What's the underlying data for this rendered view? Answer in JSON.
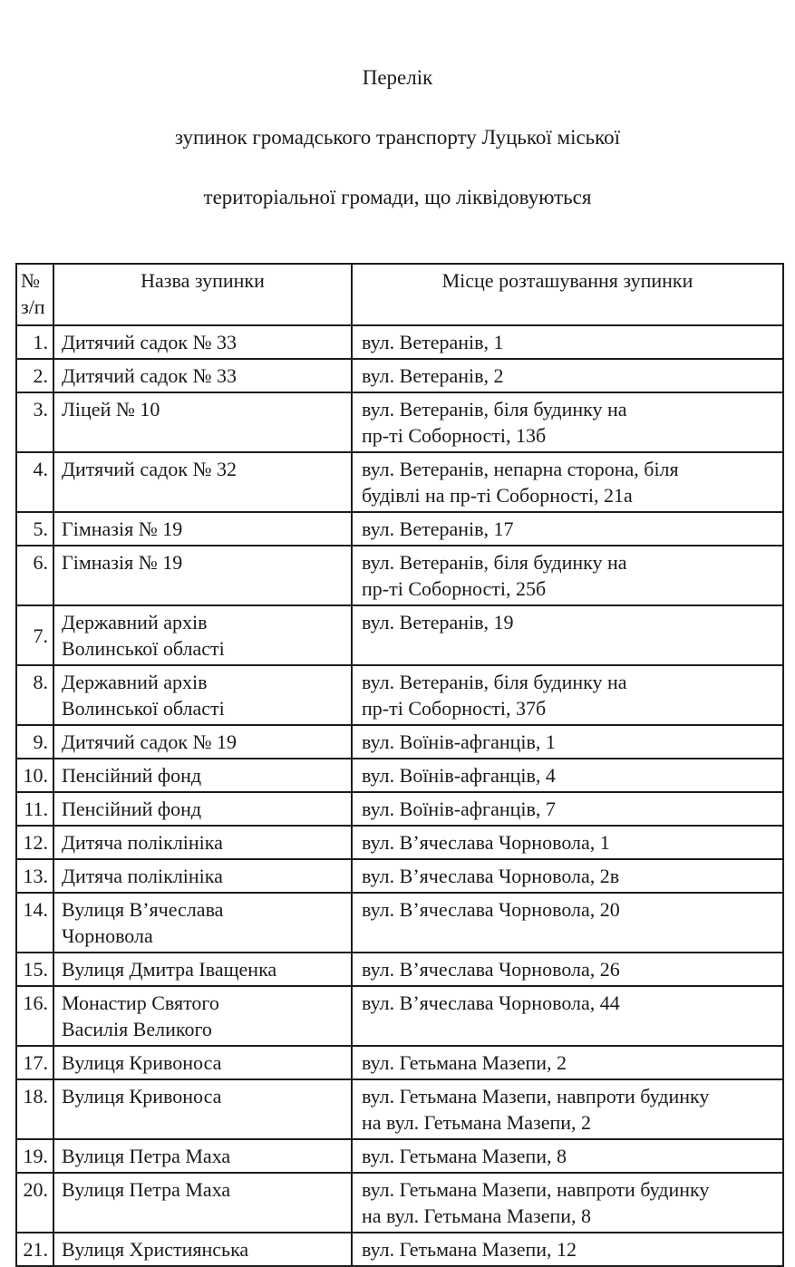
{
  "document": {
    "title_lines": [
      "Перелік",
      "зупинок громадського транспорту Луцької міської",
      "територіальної громади, що ліквідовуються"
    ]
  },
  "table": {
    "headers": {
      "num": "№\nз/п",
      "name": "Назва зупинки",
      "location": "Місце розташування зупинки"
    },
    "rows": [
      {
        "num": "1.",
        "name": "Дитячий садок № 33",
        "location": "вул. Ветеранів, 1"
      },
      {
        "num": "2.",
        "name": "Дитячий садок № 33",
        "location": "вул. Ветеранів, 2"
      },
      {
        "num": "3.",
        "name": "Ліцей № 10",
        "location": "вул. Ветеранів, біля будинку на\nпр-ті Соборності, 13б"
      },
      {
        "num": "4.",
        "name": "Дитячий садок № 32",
        "location": "вул. Ветеранів, непарна сторона, біля\nбудівлі на пр-ті Соборності, 21а"
      },
      {
        "num": "5.",
        "name": "Гімназія № 19",
        "location": "вул. Ветеранів, 17"
      },
      {
        "num": "6.",
        "name": "Гімназія № 19",
        "location": "вул. Ветеранів, біля будинку на\nпр-ті Соборності, 25б"
      },
      {
        "num": "7.",
        "name": "Державний архів\nВолинської області",
        "location": "вул. Ветеранів, 19",
        "num_valign": "middle"
      },
      {
        "num": "8.",
        "name": "Державний архів\nВолинської області",
        "location": "вул. Ветеранів, біля будинку на\nпр-ті Соборності, 37б"
      },
      {
        "num": "9.",
        "name": "Дитячий садок № 19",
        "location": "вул. Воїнів-афганців, 1"
      },
      {
        "num": "10.",
        "name": "Пенсійний фонд",
        "location": "вул. Воїнів-афганців, 4"
      },
      {
        "num": "11.",
        "name": "Пенсійний фонд",
        "location": "вул. Воїнів-афганців, 7"
      },
      {
        "num": "12.",
        "name": "Дитяча поліклініка",
        "location": "вул. В’ячеслава Чорновола, 1"
      },
      {
        "num": "13.",
        "name": "Дитяча поліклініка",
        "location": "вул. В’ячеслава Чорновола, 2в"
      },
      {
        "num": "14.",
        "name": "Вулиця В’ячеслава\nЧорновола",
        "location": "вул. В’ячеслава Чорновола, 20"
      },
      {
        "num": "15.",
        "name": "Вулиця Дмитра Іващенка",
        "location": "вул. В’ячеслава Чорновола, 26"
      },
      {
        "num": "16.",
        "name": "Монастир Святого\nВасилія Великого",
        "location": "вул. В’ячеслава Чорновола, 44"
      },
      {
        "num": "17.",
        "name": "Вулиця Кривоноса",
        "location": "вул. Гетьмана Мазепи, 2"
      },
      {
        "num": "18.",
        "name": "Вулиця Кривоноса",
        "location": "вул. Гетьмана Мазепи, навпроти будинку\nна вул. Гетьмана Мазепи, 2"
      },
      {
        "num": "19.",
        "name": "Вулиця Петра Маха",
        "location": "вул. Гетьмана Мазепи, 8"
      },
      {
        "num": "20.",
        "name": "Вулиця Петра Маха",
        "location": "вул. Гетьмана Мазепи, навпроти будинку\nна вул. Гетьмана Мазепи, 8"
      },
      {
        "num": "21.",
        "name": "Вулиця Християнська",
        "location": "вул. Гетьмана Мазепи, 12"
      }
    ]
  },
  "colors": {
    "text": "#1a1a1a",
    "border": "#1c1c1c",
    "background": "#ffffff"
  }
}
